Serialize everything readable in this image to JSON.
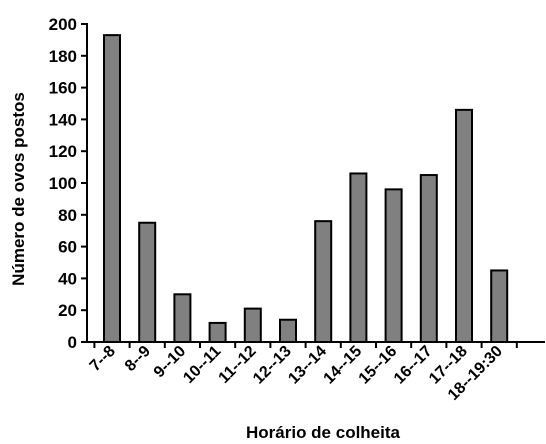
{
  "chart_data": {
    "type": "bar",
    "title": "",
    "xlabel": "Horário de colheita",
    "ylabel": "Número de ovos postos",
    "categories": [
      "7--8",
      "8--9",
      "9--10",
      "10--11",
      "11--12",
      "12--13",
      "13--14",
      "14--15",
      "15--16",
      "16--17",
      "17--18",
      "18--19:30"
    ],
    "values": [
      193,
      75,
      30,
      12,
      21,
      14,
      76,
      106,
      96,
      105,
      146,
      45
    ],
    "ylim": [
      0,
      200
    ],
    "yticks": [
      0,
      20,
      40,
      60,
      80,
      100,
      120,
      140,
      160,
      180,
      200
    ],
    "grid": false,
    "colors": {
      "bar_fill": "#808080",
      "bar_stroke": "#000000",
      "axis": "#000000"
    }
  }
}
